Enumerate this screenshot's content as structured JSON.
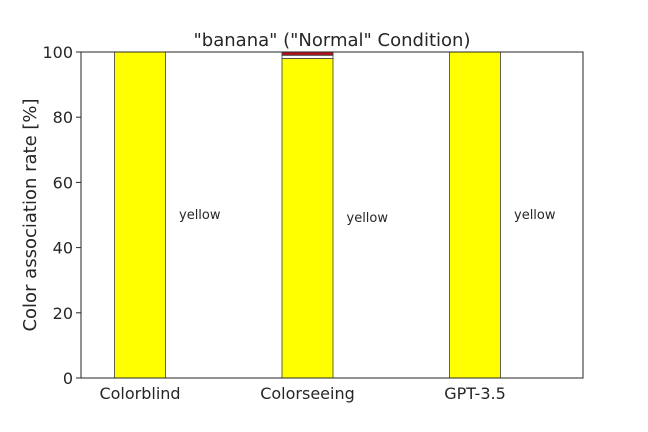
{
  "chart_data": {
    "type": "bar",
    "stacked": true,
    "title": "\"banana\" (\"Normal\" Condition)",
    "xlabel": "",
    "ylabel": "Color association rate [%]",
    "ylim": [
      0,
      100
    ],
    "yticks": [
      0,
      20,
      40,
      60,
      80,
      100
    ],
    "grid": false,
    "categories": [
      "Colorblind",
      "Colorseeing",
      "GPT-3.5"
    ],
    "stacks": [
      [
        {
          "name": "yellow",
          "value": 100,
          "color": "#ffff00"
        }
      ],
      [
        {
          "name": "yellow",
          "value": 98,
          "color": "#ffff00"
        },
        {
          "name": "white",
          "value": 1,
          "color": "#ffffff"
        },
        {
          "name": "red",
          "value": 1,
          "color": "#b5121b"
        }
      ],
      [
        {
          "name": "yellow",
          "value": 100,
          "color": "#ffff00"
        }
      ]
    ],
    "annotations": [
      {
        "category": "Colorblind",
        "text": "yellow"
      },
      {
        "category": "Colorseeing",
        "text": "yellow"
      },
      {
        "category": "GPT-3.5",
        "text": "yellow"
      }
    ]
  }
}
